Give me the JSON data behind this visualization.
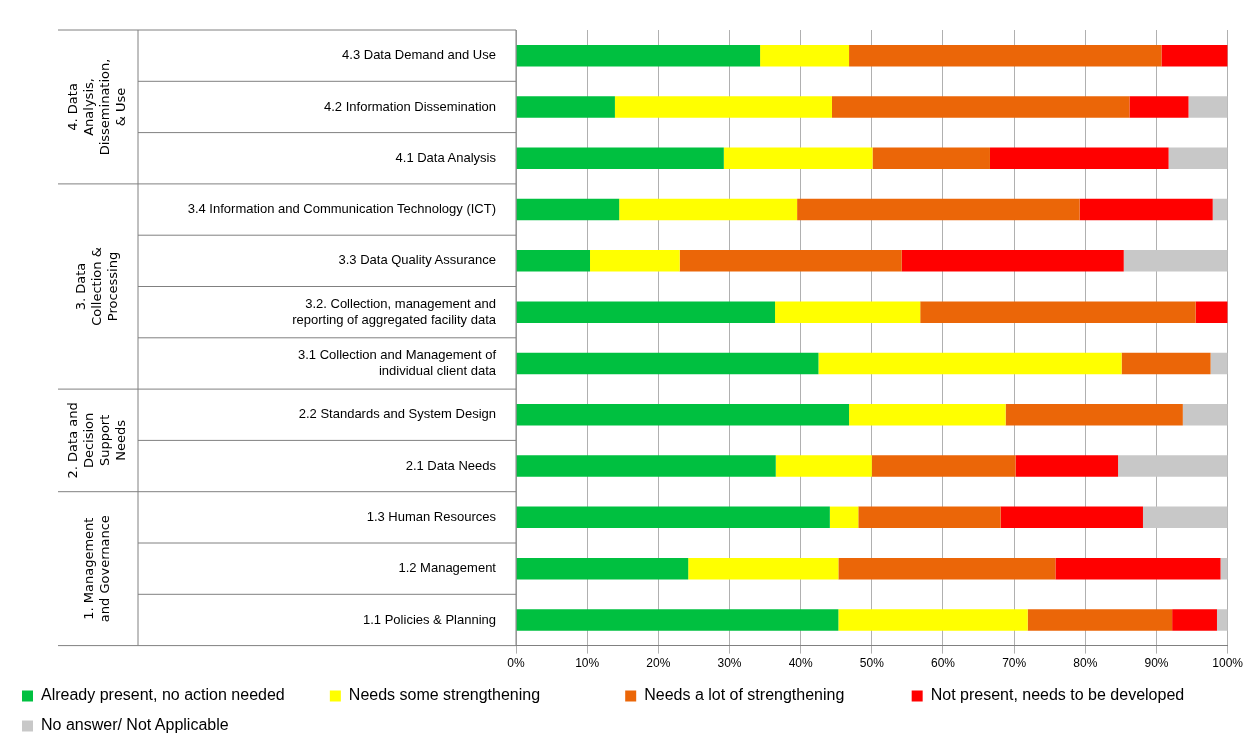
{
  "chart_data": {
    "type": "bar",
    "orientation": "horizontal",
    "stacked": true,
    "categories": [
      "4.3 Data Demand and Use",
      "4.2 Information Dissemination",
      "4.1 Data Analysis",
      "3.4 Information and Communication Technology (ICT)",
      "3.3 Data Quality Assurance",
      "3.2. Collection, management and reporting of aggregated facility data",
      "3.1 Collection and Management of individual client data",
      "2.2 Standards and System Design",
      "2.1 Data Needs",
      "1.3 Human Resources",
      "1.2 Management",
      "1.1 Policies & Planning"
    ],
    "series": [
      {
        "name": "Already present, no action needed",
        "color": "#00c040",
        "values": [
          34.3,
          13.9,
          29.2,
          14.5,
          10.4,
          36.4,
          42.5,
          46.8,
          36.5,
          44.1,
          24.2,
          45.3
        ]
      },
      {
        "name": "Needs some strengthening",
        "color": "#ffff00",
        "values": [
          12.5,
          30.5,
          20.9,
          25.0,
          12.6,
          20.4,
          42.6,
          22.0,
          13.5,
          4.0,
          21.1,
          26.6
        ]
      },
      {
        "name": "Needs a lot of strengthening",
        "color": "#eb6608",
        "values": [
          43.9,
          41.8,
          16.5,
          39.7,
          31.2,
          38.7,
          12.5,
          24.9,
          20.2,
          20.0,
          30.5,
          20.3
        ]
      },
      {
        "name": "Not present, needs to be developed",
        "color": "#ff0000",
        "values": [
          9.3,
          8.3,
          25.1,
          18.7,
          31.2,
          4.5,
          0,
          0,
          14.4,
          20.0,
          23.2,
          6.3
        ]
      },
      {
        "name": "No answer/ Not Applicable",
        "color": "#c8c8c8",
        "values": [
          0,
          5.5,
          8.3,
          2.1,
          14.6,
          0,
          2.4,
          6.3,
          15.4,
          11.9,
          1.0,
          1.5
        ]
      }
    ],
    "xlim": [
      0,
      100
    ],
    "xticks": [
      {
        "value": 0,
        "label": "0%"
      },
      {
        "value": 10,
        "label": "10%"
      },
      {
        "value": 20,
        "label": "20%"
      },
      {
        "value": 30,
        "label": "30%"
      },
      {
        "value": 40,
        "label": "40%"
      },
      {
        "value": 50,
        "label": "50%"
      },
      {
        "value": 60,
        "label": "60%"
      },
      {
        "value": 70,
        "label": "70%"
      },
      {
        "value": 80,
        "label": "80%"
      },
      {
        "value": 90,
        "label": "90%"
      },
      {
        "value": 100,
        "label": "100%"
      }
    ],
    "grid": "x",
    "legend": "bottom",
    "annotations": [
      "4. Data Analysis, Dissemination, & Use",
      "3. Data Collection & Processing",
      "2. Data and Decision Support Needs",
      "1. Management and Governance"
    ]
  }
}
